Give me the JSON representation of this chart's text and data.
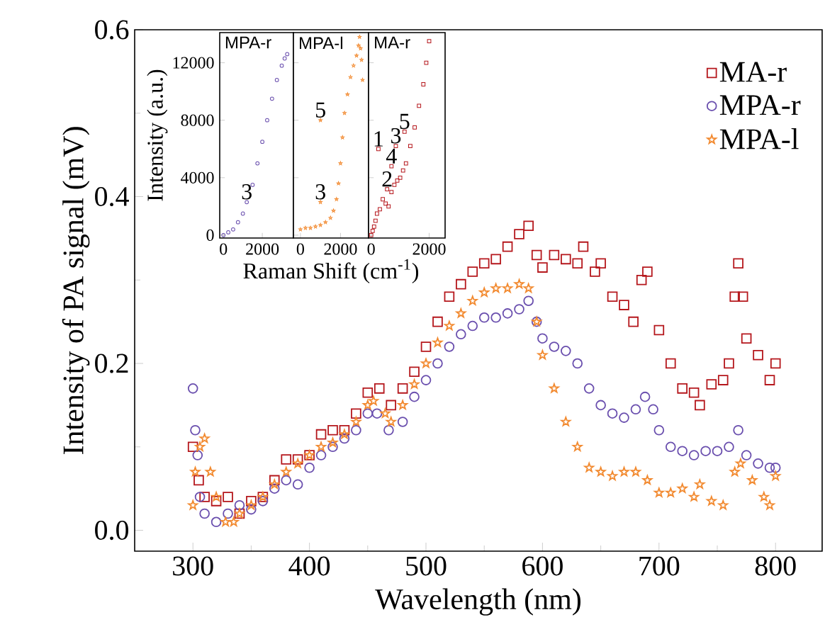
{
  "chart_data": [
    {
      "type": "scatter",
      "xlabel": "Wavelength (nm)",
      "ylabel": "Intensity of PA signal (mV)",
      "xlim": [
        250,
        840
      ],
      "ylim": [
        -0.025,
        0.6
      ],
      "xticks": [
        300,
        400,
        500,
        600,
        700,
        800
      ],
      "yticks": [
        {
          "value": 0,
          "label": "0.0"
        },
        {
          "value": 0.2,
          "label": "0.2"
        },
        {
          "value": 0.4,
          "label": "0.4"
        },
        {
          "value": 0.6,
          "label": "0.6"
        }
      ],
      "legend": "top right",
      "series": [
        {
          "name": "MA-r",
          "color": "#b5171c",
          "marker": "square",
          "x": [
            300,
            305,
            310,
            320,
            330,
            340,
            350,
            360,
            370,
            380,
            390,
            400,
            410,
            420,
            430,
            440,
            450,
            460,
            470,
            480,
            490,
            500,
            510,
            520,
            530,
            540,
            550,
            560,
            570,
            580,
            588,
            595,
            600,
            610,
            620,
            630,
            635,
            645,
            650,
            660,
            670,
            678,
            685,
            690,
            700,
            710,
            720,
            730,
            735,
            745,
            755,
            760,
            765,
            768,
            772,
            775,
            785,
            795,
            800
          ],
          "values": [
            0.1,
            0.06,
            0.04,
            0.035,
            0.04,
            0.02,
            0.035,
            0.04,
            0.06,
            0.085,
            0.085,
            0.09,
            0.115,
            0.12,
            0.12,
            0.14,
            0.165,
            0.17,
            0.15,
            0.17,
            0.19,
            0.22,
            0.25,
            0.28,
            0.295,
            0.31,
            0.32,
            0.325,
            0.34,
            0.355,
            0.365,
            0.33,
            0.315,
            0.33,
            0.325,
            0.32,
            0.34,
            0.31,
            0.32,
            0.28,
            0.27,
            0.25,
            0.3,
            0.31,
            0.24,
            0.2,
            0.17,
            0.165,
            0.15,
            0.175,
            0.18,
            0.2,
            0.28,
            0.32,
            0.28,
            0.23,
            0.21,
            0.18,
            0.2
          ]
        },
        {
          "name": "MPA-r",
          "color": "#6a4fae",
          "marker": "circle",
          "x": [
            300,
            302,
            304,
            306,
            310,
            320,
            330,
            340,
            350,
            360,
            370,
            380,
            390,
            400,
            410,
            420,
            430,
            440,
            450,
            458,
            468,
            480,
            490,
            500,
            510,
            520,
            530,
            540,
            550,
            560,
            570,
            580,
            588,
            595,
            600,
            610,
            620,
            630,
            640,
            650,
            660,
            670,
            680,
            688,
            695,
            700,
            710,
            720,
            730,
            740,
            750,
            760,
            768,
            775,
            785,
            795,
            800
          ],
          "values": [
            0.17,
            0.12,
            0.09,
            0.04,
            0.02,
            0.01,
            0.02,
            0.03,
            0.025,
            0.035,
            0.05,
            0.06,
            0.055,
            0.075,
            0.09,
            0.1,
            0.11,
            0.12,
            0.14,
            0.14,
            0.12,
            0.13,
            0.16,
            0.18,
            0.2,
            0.22,
            0.235,
            0.245,
            0.255,
            0.255,
            0.26,
            0.265,
            0.275,
            0.25,
            0.23,
            0.22,
            0.215,
            0.2,
            0.17,
            0.15,
            0.14,
            0.135,
            0.145,
            0.16,
            0.145,
            0.12,
            0.1,
            0.095,
            0.09,
            0.095,
            0.095,
            0.1,
            0.12,
            0.09,
            0.08,
            0.075,
            0.075
          ]
        },
        {
          "name": "MPA-l",
          "color": "#f28a30",
          "marker": "star",
          "x": [
            300,
            302,
            306,
            310,
            315,
            320,
            328,
            335,
            340,
            350,
            360,
            370,
            380,
            390,
            400,
            410,
            420,
            430,
            440,
            450,
            455,
            465,
            470,
            480,
            490,
            500,
            510,
            520,
            530,
            540,
            550,
            560,
            570,
            580,
            588,
            595,
            600,
            610,
            620,
            630,
            640,
            650,
            660,
            670,
            680,
            690,
            700,
            710,
            720,
            730,
            735,
            745,
            755,
            765,
            770,
            780,
            790,
            795,
            800
          ],
          "values": [
            0.03,
            0.07,
            0.1,
            0.11,
            0.07,
            0.04,
            0.01,
            0.01,
            0.02,
            0.03,
            0.04,
            0.055,
            0.07,
            0.08,
            0.09,
            0.1,
            0.105,
            0.115,
            0.13,
            0.15,
            0.155,
            0.14,
            0.13,
            0.15,
            0.175,
            0.2,
            0.225,
            0.245,
            0.26,
            0.275,
            0.285,
            0.29,
            0.29,
            0.295,
            0.29,
            0.25,
            0.21,
            0.17,
            0.13,
            0.1,
            0.075,
            0.07,
            0.065,
            0.07,
            0.07,
            0.06,
            0.045,
            0.045,
            0.05,
            0.04,
            0.055,
            0.035,
            0.03,
            0.07,
            0.08,
            0.06,
            0.04,
            0.03,
            0.065
          ]
        }
      ]
    },
    {
      "type": "scatter",
      "title": "MPA-r",
      "ylabel": "Intensity (a.u.)",
      "xlim": [
        -190,
        3600
      ],
      "ylim": [
        -200,
        14100
      ],
      "xticks": [
        0,
        2000
      ],
      "yticks": [
        0,
        4000,
        8000,
        12000
      ],
      "series": [
        {
          "color": "#6a4fae",
          "marker": "circle",
          "x": [
            0,
            250,
            500,
            750,
            1000,
            1200,
            1500,
            1750,
            2000,
            2250,
            2500,
            2750,
            3000,
            3150,
            3280
          ],
          "values": [
            0,
            200,
            400,
            900,
            1500,
            2300,
            3500,
            5000,
            6500,
            8000,
            9500,
            10800,
            11800,
            12300,
            12600
          ]
        }
      ],
      "annotations": [
        {
          "text": "3",
          "x": 1200,
          "y": 2300
        }
      ]
    },
    {
      "type": "scatter",
      "title": "MPA-l",
      "xlabel": "Raman Shift (cm$^{-1}$)",
      "tick_labels": "x",
      "xlim": [
        -350,
        3400
      ],
      "ylim": [
        -200,
        14100
      ],
      "xticks": [
        0,
        2000
      ],
      "yticks": [
        0,
        4000,
        8000,
        12000
      ],
      "series": [
        {
          "color": "#f28a30",
          "marker": "star",
          "x": [
            0,
            250,
            500,
            750,
            1000,
            1000,
            1000,
            1250,
            1500,
            1650,
            1800,
            1900,
            2000,
            2100,
            2200,
            2350,
            2500,
            2650,
            2800,
            2900,
            2950,
            3000,
            3050,
            3100
          ],
          "values": [
            400,
            500,
            500,
            600,
            700,
            8000,
            2300,
            900,
            1200,
            1700,
            2500,
            3600,
            5000,
            6800,
            8500,
            9800,
            11000,
            11800,
            12500,
            13200,
            13800,
            13000,
            12200,
            10800
          ]
        }
      ],
      "annotations": [
        {
          "text": "5",
          "x": 1000,
          "y": 8000
        },
        {
          "text": "3",
          "x": 1000,
          "y": 2300
        }
      ]
    },
    {
      "type": "scatter",
      "title": "MA-r",
      "tick_labels": "x",
      "xlim": [
        -90,
        2550
      ],
      "ylim": [
        -200,
        14100
      ],
      "xticks": [
        0,
        2000
      ],
      "yticks": [
        0,
        4000,
        8000,
        12000
      ],
      "series": [
        {
          "color": "#b5171c",
          "marker": "square",
          "x": [
            0,
            50,
            100,
            150,
            200,
            300,
            400,
            500,
            600,
            700,
            800,
            900,
            1000,
            1100,
            1200,
            1350,
            1500,
            1650,
            1800,
            1900,
            2000,
            250,
            550,
            700,
            850,
            1150
          ],
          "values": [
            0,
            300,
            600,
            1000,
            1500,
            1800,
            2500,
            2200,
            2000,
            3000,
            3500,
            3800,
            4000,
            4500,
            5000,
            6200,
            7500,
            9000,
            10500,
            12000,
            13500,
            6000,
            3200,
            4800,
            6200,
            7200
          ]
        }
      ],
      "annotations": [
        {
          "text": "1",
          "x": 250,
          "y": 6000
        },
        {
          "text": "3",
          "x": 850,
          "y": 6200
        },
        {
          "text": "5",
          "x": 1150,
          "y": 7200
        },
        {
          "text": "4",
          "x": 700,
          "y": 4800
        },
        {
          "text": "2",
          "x": 550,
          "y": 3200
        }
      ]
    }
  ]
}
